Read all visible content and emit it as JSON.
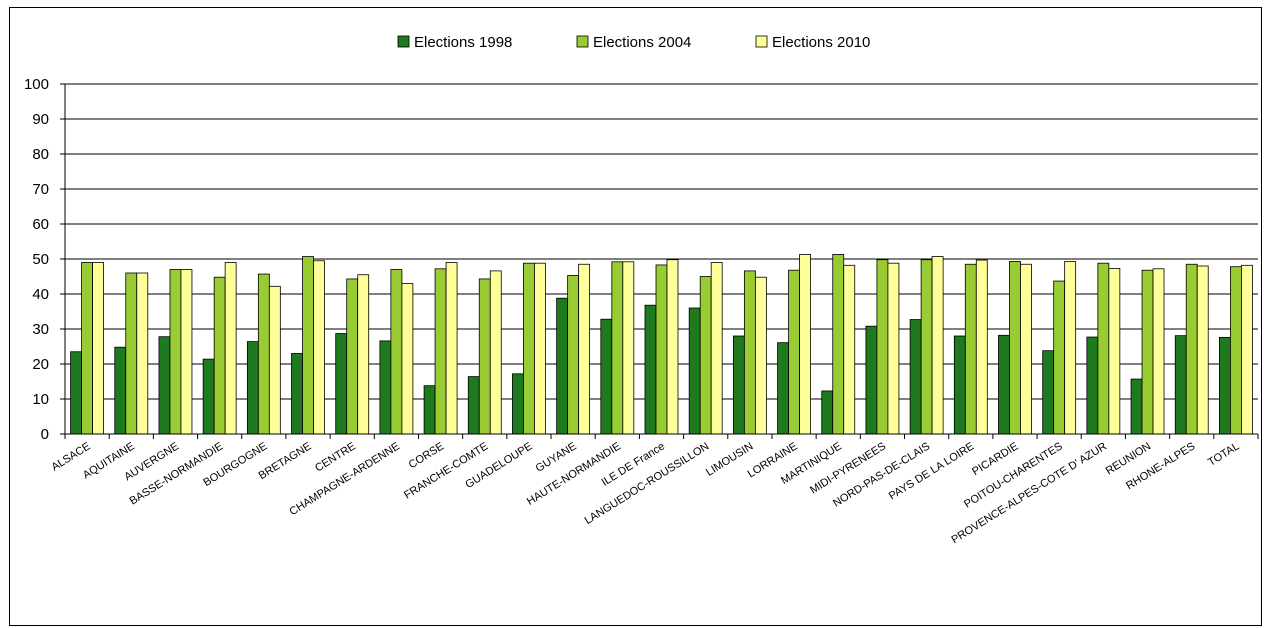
{
  "chart_data": {
    "type": "bar",
    "title": "",
    "xlabel": "",
    "ylabel": "",
    "ylim": [
      0,
      100
    ],
    "yticks": [
      0,
      10,
      20,
      30,
      40,
      50,
      60,
      70,
      80,
      90,
      100
    ],
    "grid": true,
    "legend_position": "top-center",
    "categories": [
      "ALSACE",
      "AQUITAINE",
      "AUVERGNE",
      "BASSE-NORMANDIE",
      "BOURGOGNE",
      "BRETAGNE",
      "CENTRE",
      "CHAMPAGNE-ARDENNE",
      "CORSE",
      "FRANCHE-COMTE",
      "GUADELOUPE",
      "GUYANE",
      "HAUTE-NORMANDIE",
      "ILE DE France",
      "LANGUEDOC-ROUSSILLON",
      "LIMOUSIN",
      "LORRAINE",
      "MARTINIQUE",
      "MIDI-PYRENEES",
      "NORD-PAS-DE-CLAIS",
      "PAYS DE LA LOIRE",
      "PICARDIE",
      "POITOU-CHARENTES",
      "PROVENCE-ALPES-COTE D' AZUR",
      "REUNION",
      "RHONE-ALPES",
      "TOTAL"
    ],
    "series": [
      {
        "name": "Elections 1998",
        "color": "#1f7a1f",
        "values": [
          23.5,
          24.8,
          27.8,
          21.4,
          26.4,
          23.0,
          28.7,
          26.6,
          13.8,
          16.4,
          17.2,
          38.8,
          32.8,
          36.8,
          36.0,
          28.0,
          26.1,
          12.3,
          30.8,
          32.7,
          28.0,
          28.2,
          23.8,
          27.7,
          15.7,
          28.1,
          27.6
        ]
      },
      {
        "name": "Elections 2004",
        "color": "#99cc33",
        "values": [
          49.0,
          46.0,
          47.0,
          44.8,
          45.7,
          50.7,
          44.3,
          47.0,
          47.2,
          44.3,
          48.8,
          45.3,
          49.2,
          48.3,
          45.0,
          46.6,
          46.8,
          51.3,
          49.8,
          49.8,
          48.5,
          49.3,
          43.7,
          48.8,
          46.8,
          48.5,
          47.8
        ]
      },
      {
        "name": "Elections 2010",
        "color": "#ffff99",
        "values": [
          49.0,
          46.0,
          47.0,
          49.0,
          42.2,
          49.5,
          45.5,
          43.0,
          49.0,
          46.6,
          48.8,
          48.5,
          49.2,
          49.8,
          49.0,
          44.8,
          51.3,
          48.2,
          48.8,
          50.7,
          49.7,
          48.5,
          49.3,
          47.3,
          47.2,
          48.0,
          48.2
        ]
      }
    ]
  }
}
